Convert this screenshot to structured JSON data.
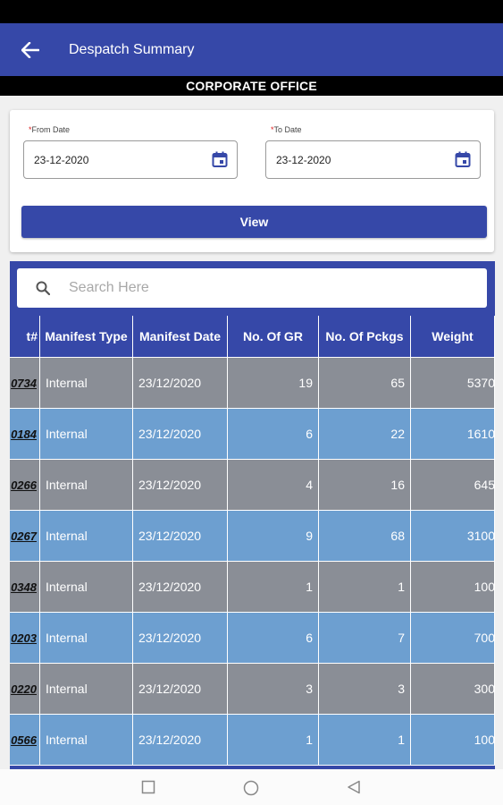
{
  "app": {
    "title": "Despatch Summary",
    "office": "CORPORATE OFFICE"
  },
  "filters": {
    "from_label": "From Date",
    "from_required": "*",
    "from_value": "23-12-2020",
    "to_label": "To Date",
    "to_required": "*",
    "to_value": "23-12-2020",
    "view_label": "View"
  },
  "search": {
    "placeholder": "Search Here"
  },
  "table": {
    "columns": [
      "t#",
      "Manifest Type",
      "Manifest Date",
      "No. Of GR",
      "No. Of Pckgs",
      "Weight"
    ],
    "rows": [
      {
        "manifest": "0734",
        "type": "Internal",
        "date": "23/12/2020",
        "gr": "19",
        "pckgs": "65",
        "weight": "5370"
      },
      {
        "manifest": "0184",
        "type": "Internal",
        "date": "23/12/2020",
        "gr": "6",
        "pckgs": "22",
        "weight": "1610"
      },
      {
        "manifest": "0266",
        "type": "Internal",
        "date": "23/12/2020",
        "gr": "4",
        "pckgs": "16",
        "weight": "645"
      },
      {
        "manifest": "0267",
        "type": "Internal",
        "date": "23/12/2020",
        "gr": "9",
        "pckgs": "68",
        "weight": "3100"
      },
      {
        "manifest": "0348",
        "type": "Internal",
        "date": "23/12/2020",
        "gr": "1",
        "pckgs": "1",
        "weight": "100"
      },
      {
        "manifest": "0203",
        "type": "Internal",
        "date": "23/12/2020",
        "gr": "6",
        "pckgs": "7",
        "weight": "700"
      },
      {
        "manifest": "0220",
        "type": "Internal",
        "date": "23/12/2020",
        "gr": "3",
        "pckgs": "3",
        "weight": "300"
      },
      {
        "manifest": "0566",
        "type": "Internal",
        "date": "23/12/2020",
        "gr": "1",
        "pckgs": "1",
        "weight": "100"
      }
    ],
    "row_colors": [
      "#8a8e96",
      "#6d9fd0"
    ]
  },
  "icons": {
    "back": "arrow-left-icon",
    "calendar": "calendar-icon",
    "search": "search-icon",
    "nav_recents": "square-icon",
    "nav_home": "circle-icon",
    "nav_back": "triangle-back-icon"
  }
}
